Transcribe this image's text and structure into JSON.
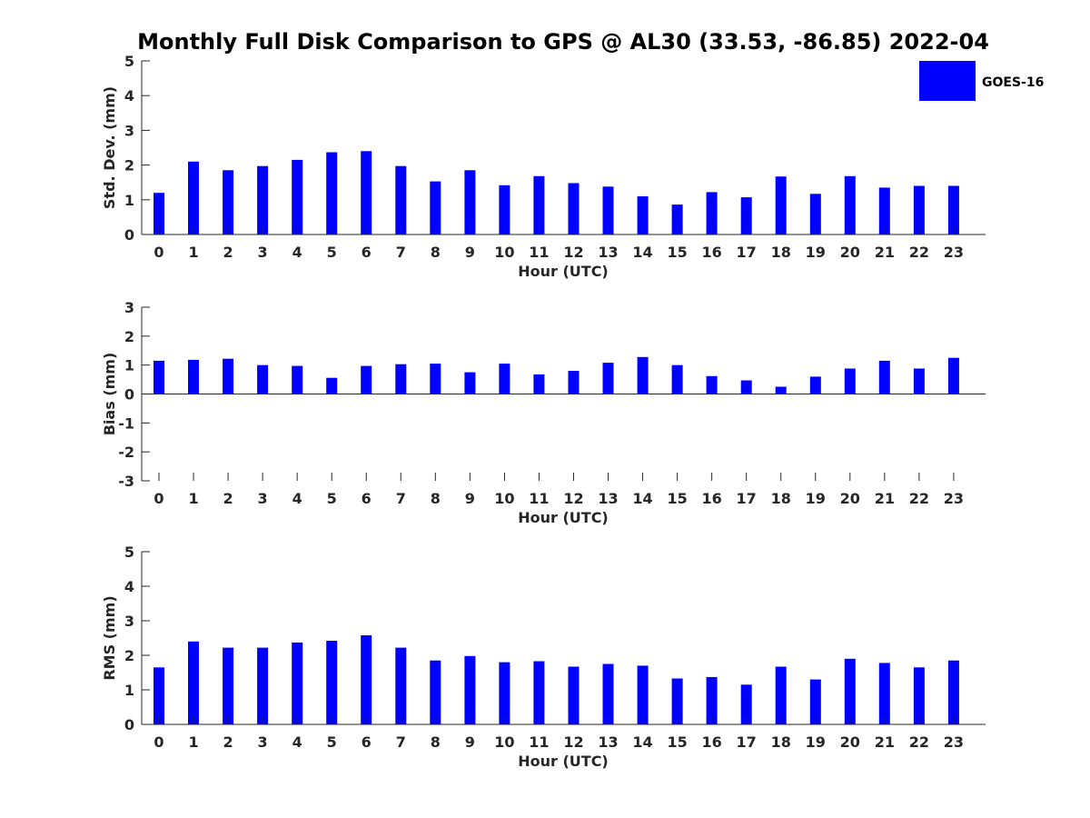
{
  "title": "Monthly Full Disk Comparison to GPS @ AL30 (33.53, -86.85) 2022-04",
  "colors": {
    "bar": "#0000ff",
    "axis": "#262626"
  },
  "legend": {
    "label": "GOES-16",
    "position": "top-right"
  },
  "chart_data": [
    {
      "type": "bar",
      "categories": [
        "0",
        "1",
        "2",
        "3",
        "4",
        "5",
        "6",
        "7",
        "8",
        "9",
        "10",
        "11",
        "12",
        "13",
        "14",
        "15",
        "16",
        "17",
        "18",
        "19",
        "20",
        "21",
        "22",
        "23"
      ],
      "series": [
        {
          "name": "GOES-16",
          "values": [
            1.2,
            2.1,
            1.85,
            1.97,
            2.15,
            2.37,
            2.4,
            1.97,
            1.53,
            1.85,
            1.42,
            1.68,
            1.48,
            1.38,
            1.1,
            0.86,
            1.22,
            1.07,
            1.67,
            1.17,
            1.68,
            1.35,
            1.4,
            1.4
          ]
        }
      ],
      "xlabel": "Hour (UTC)",
      "ylabel": "Std. Dev. (mm)",
      "ylim": [
        0,
        5
      ],
      "yticks": [
        "0",
        "1",
        "2",
        "3",
        "4",
        "5"
      ],
      "grid": false
    },
    {
      "type": "bar",
      "categories": [
        "0",
        "1",
        "2",
        "3",
        "4",
        "5",
        "6",
        "7",
        "8",
        "9",
        "10",
        "11",
        "12",
        "13",
        "14",
        "15",
        "16",
        "17",
        "18",
        "19",
        "20",
        "21",
        "22",
        "23"
      ],
      "series": [
        {
          "name": "GOES-16",
          "values": [
            1.15,
            1.18,
            1.22,
            1.0,
            0.97,
            0.56,
            0.97,
            1.03,
            1.05,
            0.75,
            1.05,
            0.68,
            0.8,
            1.08,
            1.28,
            1.0,
            0.62,
            0.47,
            0.25,
            0.6,
            0.88,
            1.15,
            0.88,
            1.25
          ]
        }
      ],
      "xlabel": "Hour (UTC)",
      "ylabel": "Bias (mm)",
      "ylim": [
        -3,
        3
      ],
      "yticks": [
        "-3",
        "-2",
        "-1",
        "0",
        "1",
        "2",
        "3"
      ],
      "grid": false
    },
    {
      "type": "bar",
      "categories": [
        "0",
        "1",
        "2",
        "3",
        "4",
        "5",
        "6",
        "7",
        "8",
        "9",
        "10",
        "11",
        "12",
        "13",
        "14",
        "15",
        "16",
        "17",
        "18",
        "19",
        "20",
        "21",
        "22",
        "23"
      ],
      "series": [
        {
          "name": "GOES-16",
          "values": [
            1.65,
            2.4,
            2.22,
            2.22,
            2.37,
            2.42,
            2.58,
            2.22,
            1.85,
            1.98,
            1.8,
            1.83,
            1.67,
            1.75,
            1.7,
            1.33,
            1.37,
            1.15,
            1.67,
            1.3,
            1.9,
            1.78,
            1.65,
            1.85
          ]
        }
      ],
      "xlabel": "Hour (UTC)",
      "ylabel": "RMS (mm)",
      "ylim": [
        0,
        5
      ],
      "yticks": [
        "0",
        "1",
        "2",
        "3",
        "4",
        "5"
      ],
      "grid": false
    }
  ]
}
